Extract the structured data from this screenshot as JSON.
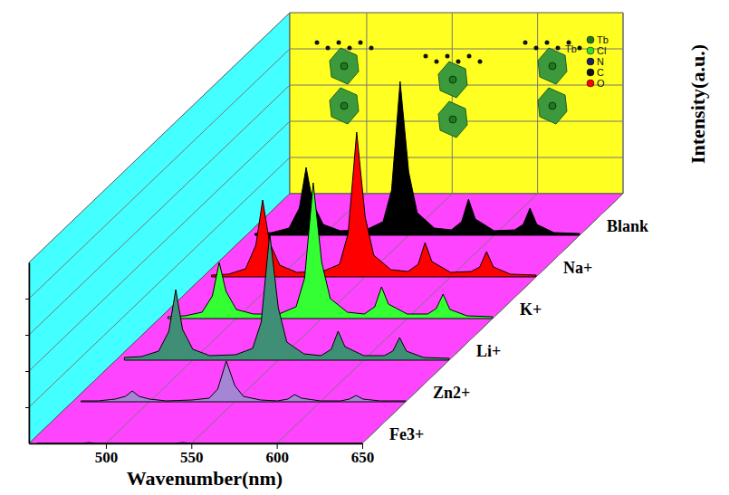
{
  "chart_data": {
    "type": "waterfall",
    "x_label": "Wavenumber(nm)",
    "y_label": "Intensity(a.u.)",
    "x": [
      460,
      470,
      480,
      486,
      490,
      494,
      500,
      510,
      525,
      535,
      540,
      545,
      550,
      555,
      565,
      575,
      581,
      585,
      589,
      600,
      612,
      617,
      621,
      625,
      635,
      650
    ],
    "series": [
      {
        "name": "Blank",
        "color": "#000000",
        "values": [
          2,
          3,
          8,
          30,
          75,
          35,
          12,
          5,
          6,
          15,
          50,
          170,
          70,
          25,
          8,
          6,
          15,
          40,
          18,
          5,
          6,
          12,
          30,
          12,
          3,
          2
        ]
      },
      {
        "name": "Na+",
        "color": "#ff0000",
        "values": [
          2,
          3,
          9,
          35,
          85,
          38,
          13,
          5,
          6,
          14,
          48,
          160,
          66,
          24,
          8,
          6,
          14,
          38,
          17,
          5,
          6,
          11,
          28,
          11,
          3,
          2
        ]
      },
      {
        "name": "K+",
        "color": "#33ff33",
        "values": [
          2,
          3,
          7,
          25,
          62,
          30,
          10,
          5,
          5,
          13,
          45,
          150,
          62,
          22,
          7,
          5,
          13,
          35,
          16,
          5,
          5,
          11,
          27,
          10,
          3,
          2
        ]
      },
      {
        "name": "Li+",
        "color": "#3f8f76",
        "values": [
          3,
          4,
          10,
          32,
          78,
          34,
          12,
          5,
          6,
          13,
          42,
          140,
          58,
          20,
          7,
          5,
          12,
          32,
          15,
          5,
          5,
          10,
          25,
          10,
          3,
          2
        ]
      },
      {
        "name": "Zn2+",
        "color": "#a585d6",
        "values": [
          1,
          1,
          3,
          6,
          12,
          6,
          3,
          1,
          2,
          4,
          14,
          45,
          18,
          6,
          2,
          1,
          3,
          8,
          4,
          1,
          1,
          3,
          7,
          3,
          1,
          1
        ]
      },
      {
        "name": "Fe3+",
        "color": "#cc55cc",
        "values": [
          0,
          0,
          0,
          0,
          1,
          0,
          0,
          0,
          0,
          0,
          0,
          1,
          0,
          0,
          0,
          0,
          0,
          0,
          0,
          0,
          0,
          0,
          0,
          0,
          0,
          0
        ]
      }
    ],
    "xlim": [
      455,
      650
    ],
    "xticks": [
      500,
      550,
      600,
      650
    ],
    "ylim": [
      0,
      200
    ],
    "yticks": [
      40,
      80,
      120,
      160
    ],
    "grid": true,
    "tick_labels": "x",
    "annotations": [
      "Tb"
    ],
    "inset_legend": [
      {
        "name": "Tb",
        "color": "#1f7a1f"
      },
      {
        "name": "Cl",
        "color": "#33dd33"
      },
      {
        "name": "N",
        "color": "#202060"
      },
      {
        "name": "C",
        "color": "#111111"
      },
      {
        "name": "O",
        "color": "#ff0000"
      }
    ]
  }
}
